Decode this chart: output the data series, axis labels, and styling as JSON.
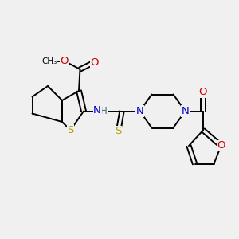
{
  "background_color": "#f0f0f0",
  "bond_color": "#000000",
  "bond_width": 1.4,
  "atom_colors": {
    "S": "#b8a000",
    "N": "#0000cc",
    "O": "#cc0000",
    "H": "#407070",
    "C": "#000000"
  },
  "font_size": 8.5,
  "title": ""
}
